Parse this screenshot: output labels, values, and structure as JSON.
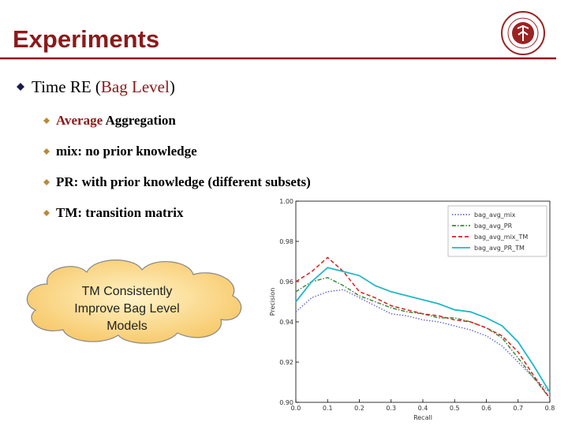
{
  "slide": {
    "title": "Experiments",
    "main_bullet": [
      {
        "text": "Time RE ("
      },
      {
        "text": "Bag Level",
        "color": "#8b1a1a"
      },
      {
        "text": ")"
      }
    ],
    "sub_bullets": [
      [
        {
          "text": "Average",
          "color": "#8b1a1a"
        },
        {
          "text": " Aggregation"
        }
      ],
      [
        {
          "text": "mix: no prior knowledge"
        }
      ],
      [
        {
          "text": "PR: with prior knowledge (different subsets)"
        }
      ],
      [
        {
          "text": "TM: transition matrix"
        }
      ]
    ],
    "callout": [
      "TM Consistently",
      "Improve Bag Level",
      "Models"
    ]
  },
  "chart_data": {
    "type": "line",
    "xlabel": "Recall",
    "ylabel": "Precision",
    "x": [
      0,
      0.05,
      0.1,
      0.15,
      0.2,
      0.25,
      0.3,
      0.35,
      0.4,
      0.45,
      0.5,
      0.55,
      0.6,
      0.65,
      0.7,
      0.75,
      0.8
    ],
    "series": [
      {
        "name": "bag_avg_mix",
        "color": "#6a6ad0",
        "style": "dotted",
        "values": [
          0.945,
          0.952,
          0.955,
          0.956,
          0.952,
          0.948,
          0.944,
          0.943,
          0.941,
          0.94,
          0.938,
          0.936,
          0.933,
          0.928,
          0.92,
          0.912,
          0.905
        ]
      },
      {
        "name": "bag_avg_PR",
        "color": "#3a8a3a",
        "style": "dashdot",
        "values": [
          0.955,
          0.96,
          0.962,
          0.958,
          0.953,
          0.95,
          0.947,
          0.945,
          0.944,
          0.942,
          0.942,
          0.94,
          0.937,
          0.932,
          0.922,
          0.912,
          0.902
        ]
      },
      {
        "name": "bag_avg_mix_TM",
        "color": "#d42020",
        "style": "dashed",
        "values": [
          0.96,
          0.965,
          0.972,
          0.965,
          0.955,
          0.952,
          0.948,
          0.946,
          0.944,
          0.943,
          0.941,
          0.94,
          0.937,
          0.933,
          0.925,
          0.913,
          0.902
        ]
      },
      {
        "name": "bag_avg_PR_TM",
        "color": "#20b8c8",
        "style": "solid",
        "values": [
          0.95,
          0.96,
          0.967,
          0.965,
          0.963,
          0.958,
          0.955,
          0.953,
          0.951,
          0.949,
          0.946,
          0.945,
          0.942,
          0.938,
          0.93,
          0.918,
          0.905
        ]
      }
    ],
    "xlim": [
      0,
      0.8
    ],
    "xticks": [
      {
        "value": 0,
        "label": "0.0"
      },
      0.1,
      0.2,
      0.3,
      0.4,
      0.5,
      0.6,
      0.7,
      0.8
    ],
    "ylim": [
      0.9,
      1.0
    ],
    "yticks": [
      {
        "value": 0.9,
        "label": "0.90"
      },
      0.92,
      0.94,
      0.96,
      0.98,
      {
        "value": 1.0,
        "label": "1.00"
      }
    ],
    "legend": "upper right"
  }
}
